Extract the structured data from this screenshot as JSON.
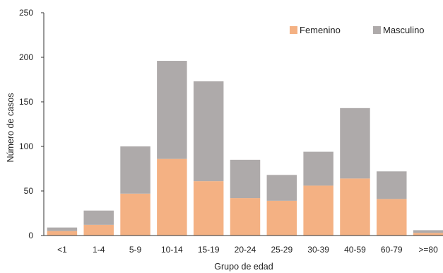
{
  "chart_data": {
    "type": "bar",
    "stacked": true,
    "categories": [
      "<1",
      "1-4",
      "5-9",
      "10-14",
      "15-19",
      "20-24",
      "25-29",
      "30-39",
      "40-59",
      "60-79",
      ">=80"
    ],
    "series": [
      {
        "name": "Femenino",
        "color": "#F4B183",
        "values": [
          5,
          12,
          47,
          86,
          61,
          42,
          39,
          56,
          64,
          41,
          3
        ]
      },
      {
        "name": "Masculino",
        "color": "#AEAAAA",
        "values": [
          4,
          16,
          53,
          110,
          112,
          43,
          29,
          38,
          79,
          31,
          3
        ]
      }
    ],
    "xlabel": "Grupo de edad",
    "ylabel": "Número de casos",
    "ylim": [
      0,
      250
    ],
    "yticks": [
      0,
      50,
      100,
      150,
      200,
      250
    ],
    "grid": false,
    "legend_position": "top-right"
  }
}
